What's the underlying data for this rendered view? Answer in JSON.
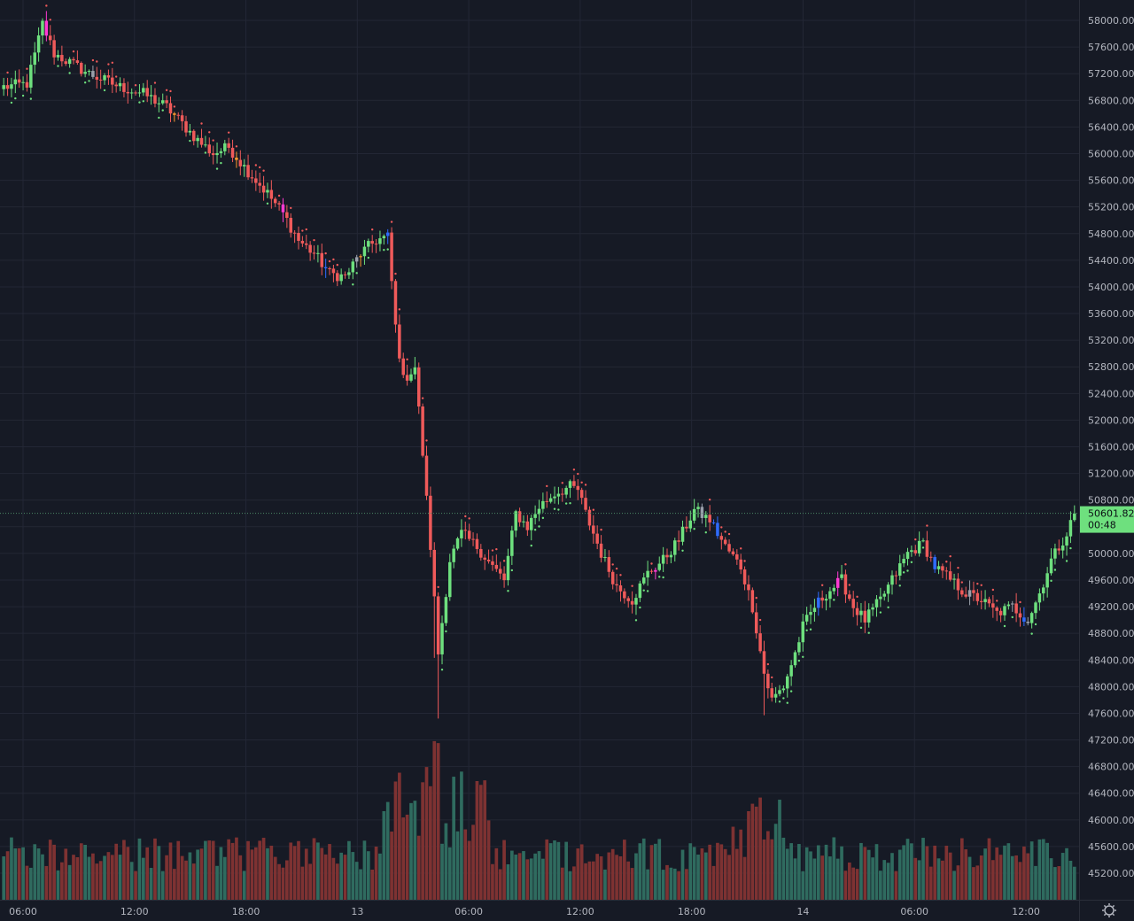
{
  "chart_data": {
    "type": "candlestick",
    "y_axis": {
      "min": 44800,
      "max": 58200,
      "ticks": [
        45200,
        45600,
        46000,
        46400,
        46800,
        47200,
        47600,
        48000,
        48400,
        48800,
        49200,
        49600,
        50000,
        50400,
        50800,
        51200,
        51600,
        52000,
        52400,
        52800,
        53200,
        53600,
        54000,
        54400,
        54800,
        55200,
        55600,
        56000,
        56400,
        56800,
        57200,
        57600,
        58000
      ],
      "tick_labels": [
        "45200.00",
        "45600.00",
        "46000.00",
        "46400.00",
        "46800.00",
        "47200.00",
        "47600.00",
        "48000.00",
        "48400.00",
        "48800.00",
        "49200.00",
        "49600.00",
        "50000.00",
        "50400.00",
        "50800.00",
        "51200.00",
        "51600.00",
        "52000.00",
        "52400.00",
        "52800.00",
        "53200.00",
        "53600.00",
        "54000.00",
        "54400.00",
        "54800.00",
        "55200.00",
        "55600.00",
        "56000.00",
        "56400.00",
        "56800.00",
        "57200.00",
        "57600.00",
        "58000.00"
      ]
    },
    "x_axis": {
      "hour_start": 3,
      "hour_end": 60.5,
      "ticks": [
        {
          "label": "06:00",
          "hour": 6
        },
        {
          "label": "12:00",
          "hour": 12
        },
        {
          "label": "18:00",
          "hour": 18
        },
        {
          "label": "13",
          "hour": 24
        },
        {
          "label": "06:00",
          "hour": 30
        },
        {
          "label": "12:00",
          "hour": 36
        },
        {
          "label": "18:00",
          "hour": 42
        },
        {
          "label": "14",
          "hour": 48
        },
        {
          "label": "06:00",
          "hour": 54
        },
        {
          "label": "12:00",
          "hour": 60
        }
      ]
    },
    "keypoints": [
      [
        0,
        57000
      ],
      [
        6,
        57050
      ],
      [
        8,
        57480
      ],
      [
        10,
        57950
      ],
      [
        13,
        57500
      ],
      [
        22,
        57200
      ],
      [
        30,
        57000
      ],
      [
        36,
        56900
      ],
      [
        42,
        56700
      ],
      [
        46,
        56450
      ],
      [
        50,
        56200
      ],
      [
        54,
        56000
      ],
      [
        58,
        56100
      ],
      [
        62,
        55800
      ],
      [
        68,
        55400
      ],
      [
        72,
        55100
      ],
      [
        76,
        54700
      ],
      [
        80,
        54500
      ],
      [
        84,
        54200
      ],
      [
        88,
        54150
      ],
      [
        92,
        54500
      ],
      [
        96,
        54700
      ],
      [
        99,
        54750
      ],
      [
        101,
        53400
      ],
      [
        103,
        52600
      ],
      [
        106,
        52800
      ],
      [
        108,
        51500
      ],
      [
        110,
        50100
      ],
      [
        112,
        48500
      ],
      [
        115,
        49900
      ],
      [
        118,
        50300
      ],
      [
        122,
        50100
      ],
      [
        126,
        49800
      ],
      [
        129,
        49600
      ],
      [
        132,
        50600
      ],
      [
        135,
        50400
      ],
      [
        138,
        50700
      ],
      [
        142,
        50900
      ],
      [
        146,
        51000
      ],
      [
        148,
        50950
      ],
      [
        150,
        50600
      ],
      [
        154,
        50000
      ],
      [
        158,
        49500
      ],
      [
        162,
        49300
      ],
      [
        166,
        49700
      ],
      [
        170,
        49900
      ],
      [
        174,
        50200
      ],
      [
        178,
        50650
      ],
      [
        182,
        50500
      ],
      [
        186,
        50100
      ],
      [
        190,
        49800
      ],
      [
        193,
        49200
      ],
      [
        196,
        48200
      ],
      [
        198,
        47800
      ],
      [
        201,
        48000
      ],
      [
        204,
        48500
      ],
      [
        206,
        48900
      ],
      [
        209,
        49200
      ],
      [
        212,
        49400
      ],
      [
        216,
        49600
      ],
      [
        219,
        49200
      ],
      [
        222,
        49000
      ],
      [
        226,
        49300
      ],
      [
        229,
        49600
      ],
      [
        233,
        50000
      ],
      [
        237,
        50150
      ],
      [
        240,
        49800
      ],
      [
        244,
        49600
      ],
      [
        248,
        49400
      ],
      [
        252,
        49300
      ],
      [
        256,
        49100
      ],
      [
        260,
        49200
      ],
      [
        264,
        49000
      ],
      [
        267,
        49400
      ],
      [
        270,
        49900
      ],
      [
        274,
        50300
      ],
      [
        276,
        50600
      ]
    ],
    "current_price": 50601.82,
    "current_price_label": "50601.82",
    "countdown_label": "00:48",
    "volume_max": 14000
  },
  "colors": {
    "background": "#161a25",
    "grid": "#232735",
    "axis_text": "#b2b5be",
    "up": "#6ee07e",
    "down": "#ef5a5a",
    "neutral": "#9aa0ab",
    "blue": "#2f6bff",
    "orange": "#ff9b2f",
    "yellow": "#ffd400",
    "magenta": "#ff3ad2",
    "volume_up": "#2f6b5f",
    "volume_down": "#7e3232",
    "price_label_bg": "#6ee07e",
    "price_line": "#4c8a67"
  },
  "icons": {
    "settings": "gear-icon"
  }
}
